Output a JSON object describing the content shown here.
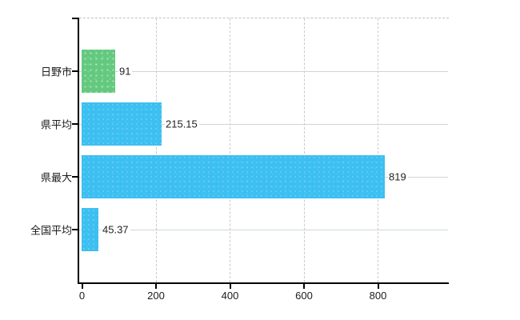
{
  "chart_data": {
    "type": "bar",
    "orientation": "horizontal",
    "title": "",
    "categories": [
      "日野市",
      "県平均",
      "県最大",
      "全国平均"
    ],
    "values": [
      91,
      215.15,
      819,
      45.37
    ],
    "value_labels": [
      "91",
      "215.15",
      "819",
      "45.37"
    ],
    "series": [
      {
        "name": "value",
        "values": [
          91,
          215.15,
          819,
          45.37
        ]
      }
    ],
    "bar_color_keys": [
      "green",
      "blue",
      "blue",
      "blue"
    ],
    "x_ticks": [
      0,
      200,
      400,
      600,
      800
    ],
    "x_tick_labels": [
      "0",
      "200",
      "400",
      "600",
      "800"
    ],
    "xlim": [
      0,
      990
    ],
    "xlabel": "",
    "ylabel": "",
    "grid": {
      "vertical": "dashed",
      "horizontal": "solid-at-category-centers",
      "top_border": "dashed"
    },
    "legend": "none"
  },
  "colors": {
    "bar_green": "#63c981",
    "bar_blue": "#3cbff1",
    "h_gridline": "#ccd8cc",
    "v_gridline": "#cfc6d2",
    "top_border": "#c6bfc9",
    "axis": "#000000",
    "text": "#1b1b1b",
    "background": "#ffffff"
  }
}
